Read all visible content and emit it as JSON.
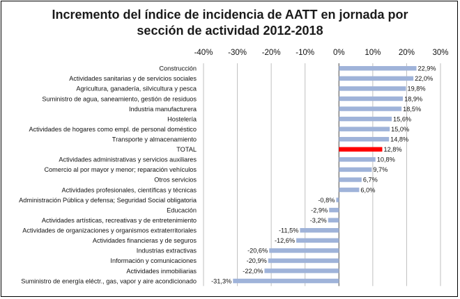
{
  "chart_data": {
    "type": "bar",
    "orientation": "horizontal",
    "title_lines": [
      "Incremento del índice de incidencia de AATT en jornada por",
      "sección de actividad 2012-2018"
    ],
    "xlim": [
      -40,
      30
    ],
    "xticks": [
      "-40%",
      "-30%",
      "-20%",
      "-10%",
      "0%",
      "10%",
      "20%",
      "30%"
    ],
    "xtick_values": [
      -40,
      -30,
      -20,
      -10,
      0,
      10,
      20,
      30
    ],
    "grid": "vertical",
    "categories": [
      "Construcción",
      "Actividades sanitarias y de servicios sociales",
      "Agricultura, ganadería, silvicultura y pesca",
      "Suministro de agua, saneamiento, gestión de residuos",
      "Industria manufacturera",
      "Hostelería",
      "Actividades de hogares como empl. de personal doméstico",
      "Transporte y almacenamiento",
      "TOTAL",
      "Actividades administrativas y servicios auxiliares",
      "Comercio al por mayor y menor; reparación vehículos",
      "Otros servicios",
      "Actividades profesionales, científicas y técnicas",
      "Administración Pública y defensa; Seguridad Social obligatoria",
      "Educación",
      "Actividades artísticas, recreativas y de entretenimiento",
      "Actividades de organizaciones y organismos extraterritoriales",
      "Actividades financieras y de seguros",
      "Industrias extractivas",
      "Información y comunicaciones",
      "Actividades inmobiliarias",
      "Suministro de energía eléctr., gas, vapor y aire acondicionado"
    ],
    "values": [
      22.9,
      22.0,
      19.8,
      18.9,
      18.5,
      15.6,
      15.0,
      14.8,
      12.8,
      10.8,
      9.7,
      6.7,
      6.0,
      -0.8,
      -2.9,
      -3.2,
      -11.5,
      -12.6,
      -20.6,
      -20.9,
      -22.0,
      -31.3
    ],
    "labels": [
      "22,9%",
      "22,0%",
      "19,8%",
      "18,9%",
      "18,5%",
      "15,6%",
      "15,0%",
      "14,8%",
      "12,8%",
      "10,8%",
      "9,7%",
      "6,7%",
      "6,0%",
      "-0,8%",
      "-2,9%",
      "-3,2%",
      "-11,5%",
      "-12,6%",
      "-20,6%",
      "-20,9%",
      "-22,0%",
      "-31,3%"
    ],
    "highlight_category": "TOTAL",
    "colors": {
      "bar": "#9fb3d9",
      "highlight": "#ff0000",
      "grid": "#bfbfbf",
      "axis": "#595959"
    }
  }
}
